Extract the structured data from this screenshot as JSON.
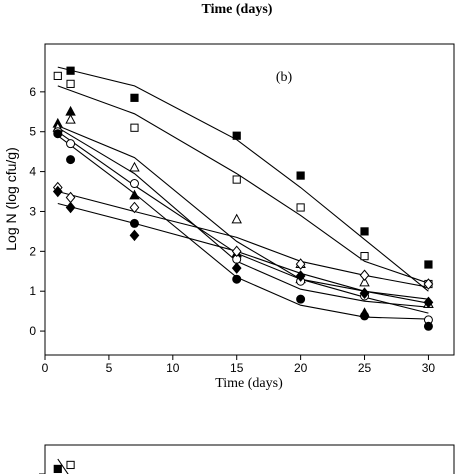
{
  "top_cropped_label": "Time (days)",
  "chart_data": [
    {
      "type": "scatter",
      "panel_label": "(b)",
      "xlabel": "Time (days)",
      "ylabel": "Log N (log cfu/g)",
      "xlim": [
        0,
        32
      ],
      "ylim": [
        -0.6,
        7.2
      ],
      "xticks": [
        0,
        5,
        10,
        15,
        20,
        25,
        30
      ],
      "yticks": [
        0,
        1,
        2,
        3,
        4,
        5,
        6
      ],
      "grid": false,
      "series": [
        {
          "marker": "filled-square",
          "x": [
            2,
            7,
            15,
            20,
            25,
            30
          ],
          "y": [
            6.53,
            5.85,
            4.9,
            3.9,
            2.5,
            1.67
          ],
          "fit": {
            "x": [
              1,
              7,
              15,
              20,
              25,
              30
            ],
            "y": [
              6.62,
              6.15,
              4.8,
              3.6,
              2.3,
              1.0
            ]
          }
        },
        {
          "marker": "open-square",
          "x": [
            1,
            2,
            7,
            15,
            20,
            25,
            30
          ],
          "y": [
            6.4,
            6.2,
            5.1,
            3.8,
            3.1,
            1.88,
            1.18
          ],
          "fit": {
            "x": [
              1,
              7,
              15,
              20,
              25,
              30
            ],
            "y": [
              6.15,
              5.45,
              3.95,
              2.9,
              1.75,
              1.2
            ]
          }
        },
        {
          "marker": "filled-triangle",
          "x": [
            1,
            2,
            7,
            15,
            20,
            25,
            30
          ],
          "y": [
            5.2,
            5.5,
            3.4,
            1.95,
            1.3,
            0.45,
            0.68
          ],
          "fit": {
            "x": [
              1,
              7,
              15,
              20,
              25,
              30
            ],
            "y": [
              5.1,
              3.95,
              1.75,
              1.05,
              0.75,
              0.6
            ]
          }
        },
        {
          "marker": "open-triangle",
          "x": [
            1,
            2,
            7,
            15,
            20,
            25,
            30
          ],
          "y": [
            5.1,
            5.3,
            4.1,
            2.8,
            1.68,
            1.22,
            0.68
          ],
          "fit": {
            "x": [
              1,
              7,
              15,
              20,
              25,
              30
            ],
            "y": [
              5.15,
              4.35,
              2.25,
              1.3,
              1.0,
              0.7
            ]
          }
        },
        {
          "marker": "open-circle",
          "x": [
            1,
            2,
            7,
            15,
            20,
            25,
            30
          ],
          "y": [
            5.0,
            4.7,
            3.7,
            1.8,
            1.25,
            0.88,
            0.28
          ],
          "fit": {
            "x": [
              1,
              7,
              15,
              20,
              25,
              30
            ],
            "y": [
              5.0,
              3.65,
              1.95,
              1.3,
              0.85,
              0.45
            ]
          }
        },
        {
          "marker": "filled-circle",
          "x": [
            1,
            2,
            7,
            15,
            20,
            25,
            30
          ],
          "y": [
            4.95,
            4.3,
            2.7,
            1.3,
            0.8,
            0.38,
            0.12
          ],
          "fit": {
            "x": [
              1,
              7,
              15,
              20,
              25,
              30
            ],
            "y": [
              4.9,
              3.45,
              1.35,
              0.65,
              0.35,
              0.3
            ]
          }
        },
        {
          "marker": "open-diamond",
          "x": [
            1,
            2,
            7,
            15,
            20,
            25,
            30
          ],
          "y": [
            3.6,
            3.35,
            3.1,
            2.0,
            1.68,
            1.4,
            1.18
          ],
          "fit": {
            "x": [
              1,
              7,
              15,
              20,
              25,
              30
            ],
            "y": [
              3.5,
              3.0,
              2.35,
              1.75,
              1.4,
              1.1
            ]
          }
        },
        {
          "marker": "filled-diamond",
          "x": [
            1,
            2,
            7,
            15,
            20,
            25,
            30
          ],
          "y": [
            3.5,
            3.1,
            2.4,
            1.58,
            1.38,
            0.95,
            0.72
          ],
          "fit": {
            "x": [
              1,
              7,
              15,
              20,
              25,
              30
            ],
            "y": [
              3.2,
              2.7,
              2.0,
              1.45,
              1.0,
              0.8
            ]
          }
        }
      ]
    },
    {
      "type": "scatter",
      "note": "partially visible next panel",
      "xlim": [
        0,
        32
      ],
      "ylim": [
        -0.6,
        7.2
      ],
      "series": [
        {
          "marker": "filled-square",
          "x": [
            1,
            2
          ],
          "y": [
            6.6,
            6.3
          ],
          "fit": {
            "x": [
              1,
              2.8
            ],
            "y": [
              6.85,
              6.0
            ]
          }
        },
        {
          "marker": "open-square",
          "x": [
            2
          ],
          "y": [
            6.7
          ]
        },
        {
          "marker": "filled-square",
          "x": [
            2
          ],
          "y": [
            6.15
          ]
        }
      ]
    }
  ]
}
